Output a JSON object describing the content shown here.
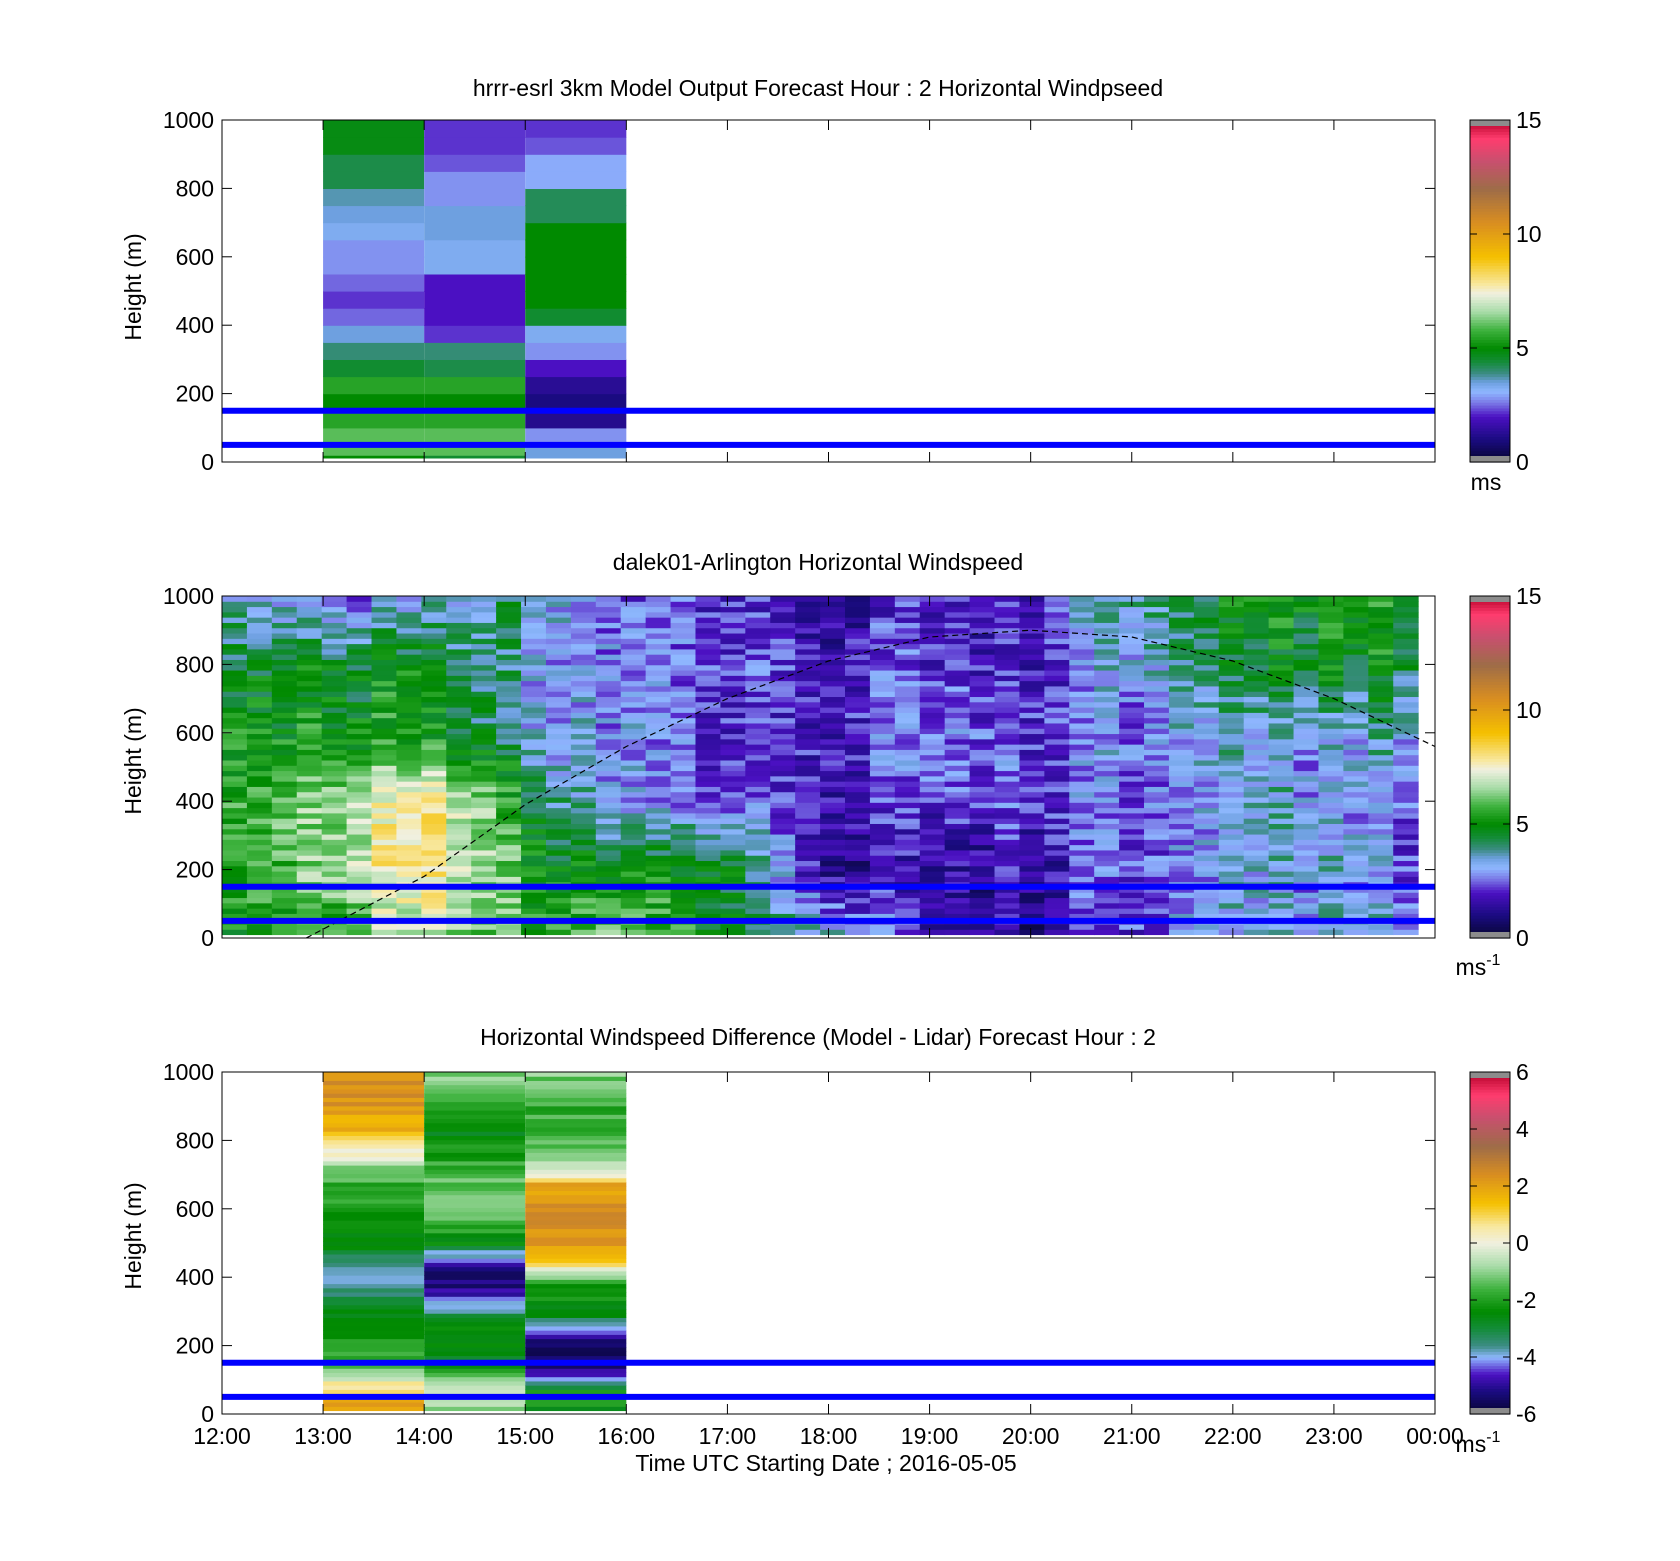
{
  "figure": {
    "xaxis": {
      "label": "Time UTC  Starting Date ; 2016-05-05",
      "ticks": [
        "12:00",
        "13:00",
        "14:00",
        "15:00",
        "16:00",
        "17:00",
        "18:00",
        "19:00",
        "20:00",
        "21:00",
        "22:00",
        "23:00",
        "00:00"
      ]
    },
    "ylabel": "Height (m)",
    "yticks": [
      "0",
      "200",
      "400",
      "600",
      "800",
      "1000"
    ],
    "reference_lines_m": [
      50,
      150
    ],
    "reference_line_color": "#0000ff"
  },
  "chart_data": [
    {
      "type": "heatmap",
      "title": "hrrr-esrl 3km Model Output   Forecast Hour : 2 Horizontal Windpseed",
      "xlabel": "",
      "ylabel": "Height (m)",
      "ylim": [
        0,
        1000
      ],
      "xlim": [
        "12:00",
        "00:00"
      ],
      "colorbar": {
        "min": 0,
        "max": 15,
        "ticks": [
          "0",
          "5",
          "10",
          "15"
        ],
        "unit": "ms",
        "unit_sup": ""
      },
      "x": [
        "13:00",
        "14:00",
        "15:00"
      ],
      "heights_m": [
        20,
        40,
        60,
        100,
        150,
        200,
        250,
        300,
        350,
        400,
        450,
        500,
        550,
        600,
        650,
        700,
        750,
        800,
        850,
        900,
        950,
        1000
      ],
      "values": [
        [
          5.0,
          6.0,
          6.0,
          6.0,
          5.5,
          5.0,
          5.5,
          4.5,
          4.0,
          3.5,
          2.5,
          2.2,
          2.5,
          2.8,
          2.8,
          3.3,
          3.5,
          3.7,
          4.3,
          4.3,
          4.8,
          4.8
        ],
        [
          4.5,
          6.0,
          6.0,
          6.0,
          5.5,
          5.0,
          5.5,
          4.3,
          4.0,
          2.2,
          2.0,
          2.0,
          2.0,
          3.3,
          3.3,
          3.5,
          3.5,
          2.8,
          2.8,
          2.4,
          2.2,
          2.2
        ],
        [
          3.5,
          3.5,
          3.5,
          2.8,
          1.2,
          1.0,
          1.3,
          2.0,
          2.8,
          3.3,
          4.5,
          5.0,
          5.0,
          5.0,
          5.0,
          5.0,
          4.2,
          4.2,
          3.0,
          3.0,
          2.4,
          2.2
        ]
      ]
    },
    {
      "type": "heatmap",
      "title": "dalek01-Arlington  Horizontal Windspeed",
      "xlabel": "",
      "ylabel": "Height (m)",
      "ylim": [
        0,
        1000
      ],
      "xlim": [
        "12:00",
        "00:00"
      ],
      "colorbar": {
        "min": 0,
        "max": 15,
        "ticks": [
          "0",
          "5",
          "10",
          "15"
        ],
        "unit": "ms",
        "unit_sup": "-1"
      },
      "x_range": [
        "12:00",
        "23:50"
      ],
      "anchor_times": [
        "12:00",
        "13:00",
        "14:00",
        "15:00",
        "16:00",
        "17:00",
        "18:00",
        "19:00",
        "20:00",
        "21:00",
        "22:00",
        "23:00",
        "23:50"
      ],
      "anchor_profiles": [
        {
          "heights": [
            0,
            200,
            400,
            600,
            800,
            1000
          ],
          "values": [
            5.0,
            5.2,
            5.3,
            5.0,
            4.2,
            3.5
          ]
        },
        {
          "heights": [
            0,
            200,
            400,
            600,
            800,
            1000
          ],
          "values": [
            5.5,
            6.5,
            6.5,
            5.3,
            4.8,
            2.8
          ]
        },
        {
          "heights": [
            0,
            200,
            400,
            600,
            800,
            1000
          ],
          "values": [
            6.5,
            8.0,
            7.8,
            5.0,
            4.8,
            2.8
          ]
        },
        {
          "heights": [
            0,
            200,
            400,
            600,
            800,
            1000
          ],
          "values": [
            5.5,
            5.5,
            4.8,
            3.5,
            3.5,
            4.0
          ]
        },
        {
          "heights": [
            0,
            200,
            400,
            600,
            800,
            1000
          ],
          "values": [
            6.5,
            5.0,
            3.0,
            3.0,
            3.0,
            2.5
          ]
        },
        {
          "heights": [
            0,
            200,
            400,
            600,
            800,
            1000
          ],
          "values": [
            4.5,
            4.8,
            2.5,
            2.0,
            2.2,
            2.0
          ]
        },
        {
          "heights": [
            0,
            200,
            400,
            600,
            800,
            1000
          ],
          "values": [
            3.5,
            1.2,
            1.5,
            1.8,
            1.8,
            1.2
          ]
        },
        {
          "heights": [
            0,
            200,
            400,
            600,
            800,
            1000
          ],
          "values": [
            2.2,
            1.5,
            2.5,
            3.0,
            2.3,
            2.3
          ]
        },
        {
          "heights": [
            0,
            200,
            400,
            600,
            800,
            1000
          ],
          "values": [
            1.2,
            1.6,
            2.3,
            2.4,
            2.0,
            1.8
          ]
        },
        {
          "heights": [
            0,
            200,
            400,
            600,
            800,
            1000
          ],
          "values": [
            2.5,
            2.5,
            2.6,
            2.8,
            3.3,
            4.0
          ]
        },
        {
          "heights": [
            0,
            200,
            400,
            600,
            800,
            1000
          ],
          "values": [
            3.3,
            3.2,
            3.3,
            3.5,
            4.3,
            4.8
          ]
        },
        {
          "heights": [
            0,
            200,
            400,
            600,
            800,
            1000
          ],
          "values": [
            3.2,
            3.3,
            3.3,
            3.2,
            5.0,
            5.5
          ]
        },
        {
          "heights": [
            0,
            200,
            400,
            600,
            800,
            1000
          ],
          "values": [
            2.8,
            2.5,
            2.5,
            3.5,
            4.5,
            5.0
          ]
        }
      ],
      "mixing_height_curve": {
        "times": [
          "12:50",
          "14:00",
          "15:00",
          "16:00",
          "17:00",
          "18:00",
          "19:00",
          "20:00",
          "21:00",
          "22:00",
          "23:00",
          "00:00"
        ],
        "heights_m": [
          0,
          180,
          390,
          560,
          700,
          810,
          880,
          900,
          880,
          810,
          700,
          560
        ]
      }
    },
    {
      "type": "heatmap",
      "title": "Horizontal Windspeed Difference (Model - Lidar) Forecast Hour : 2",
      "xlabel": "Time UTC  Starting Date ; 2016-05-05",
      "ylabel": "Height (m)",
      "ylim": [
        0,
        1000
      ],
      "xlim": [
        "12:00",
        "00:00"
      ],
      "colorbar": {
        "min": -6,
        "max": 6,
        "ticks": [
          "-6",
          "-4",
          "-2",
          "0",
          "2",
          "4",
          "6"
        ],
        "unit": "ms",
        "unit_sup": "-1"
      },
      "x": [
        "13:00",
        "14:00",
        "15:00"
      ],
      "anchor_profiles": [
        {
          "heights": [
            10,
            60,
            110,
            160,
            220,
            290,
            360,
            420,
            500,
            600,
            700,
            760,
            820,
            900,
            1000
          ],
          "values": [
            2.0,
            1.5,
            -0.5,
            -1.8,
            -2.0,
            -2.5,
            -3.5,
            -3.5,
            -2.5,
            -2.2,
            -1.5,
            0.0,
            1.5,
            2.2,
            2.5
          ]
        },
        {
          "heights": [
            10,
            60,
            110,
            160,
            250,
            320,
            360,
            400,
            450,
            500,
            600,
            700,
            800,
            900,
            1000
          ],
          "values": [
            -1.0,
            -0.5,
            -1.5,
            -2.5,
            -2.5,
            -4.0,
            -5.0,
            -5.5,
            -4.5,
            -2.5,
            -1.0,
            -1.5,
            -2.5,
            -2.2,
            -1.0
          ]
        },
        {
          "heights": [
            10,
            60,
            110,
            160,
            200,
            300,
            380,
            450,
            500,
            600,
            680,
            700,
            800,
            900,
            1000
          ],
          "values": [
            -2.5,
            -2.0,
            -4.5,
            -5.5,
            -5.5,
            -2.5,
            -2.0,
            1.5,
            2.2,
            2.5,
            1.8,
            -0.5,
            -1.5,
            -1.8,
            -1.0
          ]
        }
      ]
    }
  ]
}
